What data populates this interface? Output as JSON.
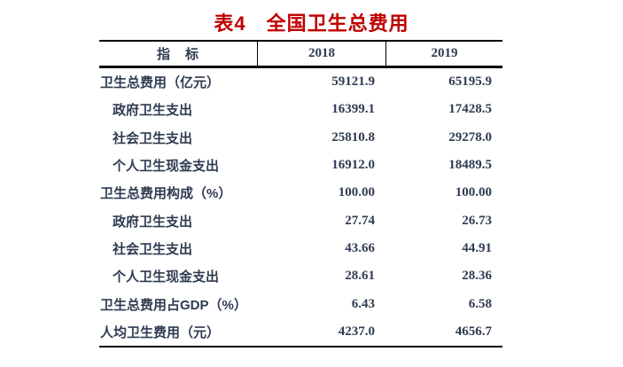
{
  "page": {
    "background": "#ffffff"
  },
  "title": {
    "text": "表4　全国卫生总费用",
    "color": "#c00000"
  },
  "table": {
    "columns": [
      {
        "key": "indicator",
        "label": "指　标"
      },
      {
        "key": "y2018",
        "label": "2018"
      },
      {
        "key": "y2019",
        "label": "2019"
      }
    ],
    "rows": [
      {
        "label": "卫生总费用（亿元）",
        "indent": false,
        "values": [
          "59121.9",
          "65195.9"
        ]
      },
      {
        "label": "政府卫生支出",
        "indent": true,
        "values": [
          "16399.1",
          "17428.5"
        ]
      },
      {
        "label": "社会卫生支出",
        "indent": true,
        "values": [
          "25810.8",
          "29278.0"
        ]
      },
      {
        "label": "个人卫生现金支出",
        "indent": true,
        "values": [
          "16912.0",
          "18489.5"
        ]
      },
      {
        "label": "卫生总费用构成（%）",
        "indent": false,
        "values": [
          "100.00",
          "100.00"
        ]
      },
      {
        "label": "政府卫生支出",
        "indent": true,
        "values": [
          "27.74",
          "26.73"
        ]
      },
      {
        "label": "社会卫生支出",
        "indent": true,
        "values": [
          "43.66",
          "44.91"
        ]
      },
      {
        "label": "个人卫生现金支出",
        "indent": true,
        "values": [
          "28.61",
          "28.36"
        ]
      },
      {
        "label": "卫生总费用占GDP（%）",
        "indent": false,
        "values": [
          "6.43",
          "6.58"
        ]
      },
      {
        "label": "人均卫生费用（元）",
        "indent": false,
        "values": [
          "4237.0",
          "4656.7"
        ]
      }
    ],
    "colors": {
      "border": "#000000",
      "text": "#2f3b52"
    }
  }
}
